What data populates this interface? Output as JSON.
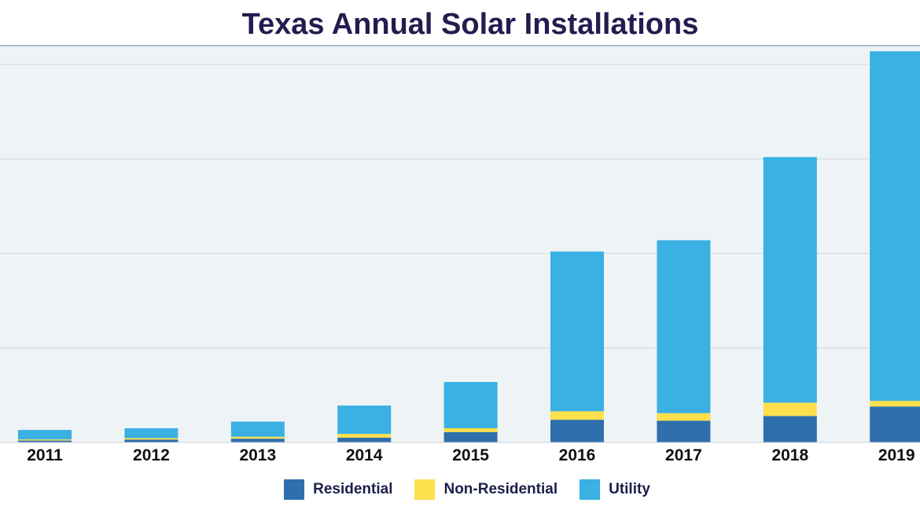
{
  "chart_data": {
    "type": "bar",
    "stacked": true,
    "title": "Texas Annual Solar Installations",
    "xlabel": "",
    "ylabel": "",
    "categories": [
      "2011",
      "2012",
      "2013",
      "2014",
      "2015",
      "2016",
      "2017",
      "2018",
      "2019"
    ],
    "series": [
      {
        "name": "Residential",
        "color": "#2f6fad",
        "values": [
          10,
          15,
          20,
          25,
          55,
          120,
          115,
          140,
          190
        ]
      },
      {
        "name": "Non-Residential",
        "color": "#fde04b",
        "values": [
          6,
          8,
          10,
          20,
          20,
          45,
          40,
          70,
          30
        ]
      },
      {
        "name": "Utility",
        "color": "#3ab0e3",
        "values": [
          50,
          52,
          80,
          150,
          245,
          845,
          915,
          1300,
          1850
        ]
      }
    ],
    "ylim": [
      0,
      2100
    ],
    "grid": true,
    "legend_position": "bottom"
  }
}
